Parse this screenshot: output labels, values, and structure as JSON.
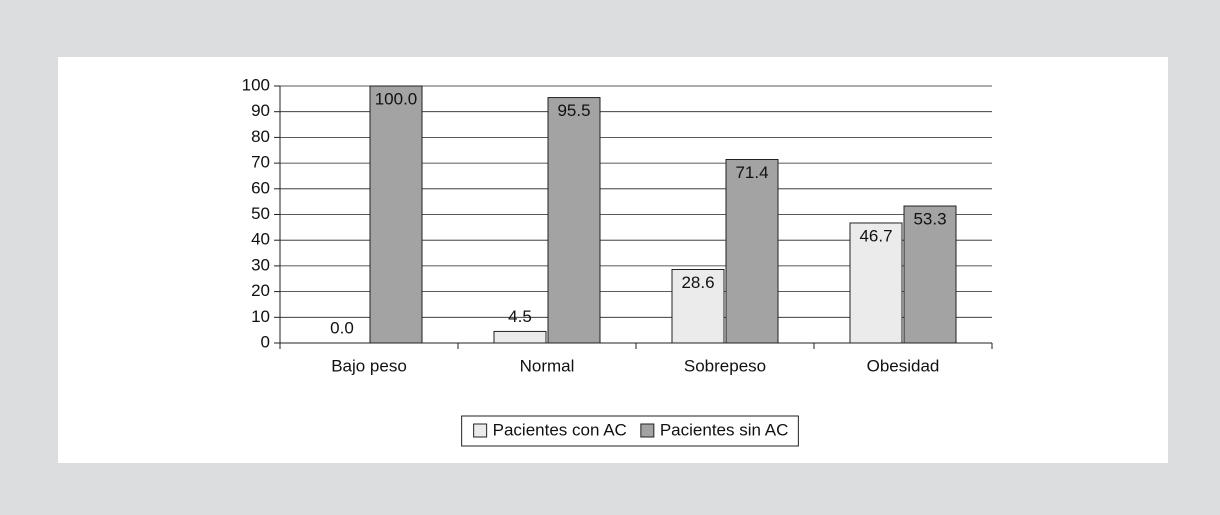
{
  "chart_data": {
    "type": "bar",
    "categories": [
      "Bajo peso",
      "Normal",
      "Sobrepeso",
      "Obesidad"
    ],
    "series": [
      {
        "name": "Pacientes con AC",
        "color": "#ebebeb",
        "values": [
          0,
          4.5,
          28.6,
          46.7
        ],
        "value_labels": [
          "0.0",
          "4.5",
          "28.6",
          "46.7"
        ]
      },
      {
        "name": "Pacientes sin AC",
        "color": "#a3a3a3",
        "values": [
          100,
          95.5,
          71.4,
          53.3
        ],
        "value_labels": [
          "100.0",
          "95.5",
          "71.4",
          "53.3"
        ]
      }
    ],
    "ylim": [
      0,
      100
    ],
    "yticks": [
      0,
      10,
      20,
      30,
      40,
      50,
      60,
      70,
      80,
      90,
      100
    ],
    "grid": true,
    "legend": "bottom"
  }
}
